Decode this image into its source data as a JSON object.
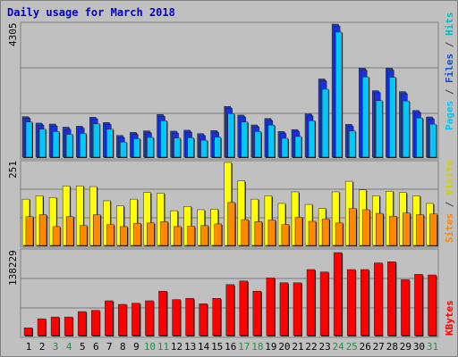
{
  "window": {
    "title": "Daily usage for March 2018"
  },
  "colors": {
    "frame_bg": "#c0c0c0",
    "title": "#0000c8",
    "hits": "#00c8f8",
    "files": "#1830e0",
    "pages": "#1c3cc8",
    "visits": "#ffff00",
    "sites": "#ff8800",
    "kbytes": "#ff0000",
    "weekday_label": "#000000",
    "weekend_label": "#2a8a4a",
    "hits_label": "#00c0c0",
    "files_label": "#1050d0",
    "pages_label": "#00c8f8",
    "visits_label": "#d0d000",
    "sites_label": "#ff8800",
    "kbytes_label": "#ff0000"
  },
  "chart_data": [
    {
      "type": "bar",
      "panel": "hits-files-pages",
      "max_label": "4305",
      "ylim": [
        0,
        4305
      ],
      "right_labels": [
        "Pages",
        "Files",
        "Hits"
      ],
      "categories": [
        "1",
        "2",
        "3",
        "4",
        "5",
        "6",
        "7",
        "8",
        "9",
        "10",
        "11",
        "12",
        "13",
        "14",
        "15",
        "16",
        "17",
        "18",
        "19",
        "20",
        "21",
        "22",
        "23",
        "24",
        "25",
        "26",
        "27",
        "28",
        "29",
        "30",
        "31"
      ],
      "weekend": [
        3,
        4,
        10,
        11,
        17,
        18,
        24,
        25,
        31
      ],
      "series": [
        {
          "name": "Hits",
          "values": [
            1310,
            1080,
            1000,
            910,
            940,
            1250,
            1080,
            660,
            770,
            810,
            1350,
            790,
            800,
            720,
            820,
            1580,
            1310,
            1000,
            1210,
            780,
            840,
            1350,
            2370,
            4220,
            1020,
            2770,
            2000,
            2760,
            1990,
            1440,
            1240
          ]
        },
        {
          "name": "Files",
          "values": [
            1340,
            1120,
            1090,
            980,
            1020,
            1320,
            1140,
            720,
            820,
            870,
            1400,
            860,
            890,
            780,
            880,
            1660,
            1380,
            1060,
            1270,
            850,
            910,
            1420,
            2550,
            4320,
            1080,
            2900,
            2170,
            2900,
            2140,
            1530,
            1320
          ]
        },
        {
          "name": "Pages",
          "values": [
            1310,
            1100,
            1070,
            970,
            1000,
            1290,
            1120,
            700,
            800,
            850,
            1380,
            840,
            870,
            760,
            860,
            1640,
            1360,
            1040,
            1250,
            830,
            890,
            1400,
            2530,
            4305,
            1060,
            2880,
            2150,
            2880,
            2120,
            1510,
            1300
          ]
        }
      ]
    },
    {
      "type": "bar",
      "panel": "visits-sites",
      "max_label": "251",
      "ylim": [
        0,
        251
      ],
      "right_labels": [
        "Sites",
        "Visits"
      ],
      "categories": [
        "1",
        "2",
        "3",
        "4",
        "5",
        "6",
        "7",
        "8",
        "9",
        "10",
        "11",
        "12",
        "13",
        "14",
        "15",
        "16",
        "17",
        "18",
        "19",
        "20",
        "21",
        "22",
        "23",
        "24",
        "25",
        "26",
        "27",
        "28",
        "29",
        "30",
        "31"
      ],
      "series": [
        {
          "name": "Visits",
          "values": [
            140,
            150,
            145,
            180,
            180,
            178,
            135,
            120,
            140,
            160,
            158,
            105,
            118,
            108,
            110,
            251,
            195,
            140,
            150,
            127,
            162,
            124,
            112,
            162,
            194,
            168,
            150,
            164,
            160,
            150,
            127
          ]
        },
        {
          "name": "Sites",
          "values": [
            87,
            93,
            57,
            87,
            60,
            93,
            63,
            57,
            67,
            68,
            72,
            57,
            58,
            60,
            65,
            130,
            78,
            72,
            77,
            63,
            85,
            73,
            80,
            68,
            112,
            108,
            97,
            88,
            98,
            93,
            95
          ]
        }
      ]
    },
    {
      "type": "bar",
      "panel": "kbytes",
      "max_label": "138229",
      "ylim": [
        0,
        138229
      ],
      "right_labels": [
        "KBytes"
      ],
      "categories": [
        "1",
        "2",
        "3",
        "4",
        "5",
        "6",
        "7",
        "8",
        "9",
        "10",
        "11",
        "12",
        "13",
        "14",
        "15",
        "16",
        "17",
        "18",
        "19",
        "20",
        "21",
        "22",
        "23",
        "24",
        "25",
        "26",
        "27",
        "28",
        "29",
        "30",
        "31"
      ],
      "series": [
        {
          "name": "KBytes",
          "values": [
            13000,
            28000,
            31000,
            31000,
            40000,
            42000,
            58000,
            52000,
            54000,
            58000,
            74000,
            60000,
            62000,
            53000,
            62000,
            85000,
            91000,
            74000,
            96000,
            88000,
            88000,
            110000,
            106000,
            138229,
            110000,
            110000,
            121000,
            123000,
            93000,
            102000,
            101000
          ]
        }
      ]
    }
  ]
}
